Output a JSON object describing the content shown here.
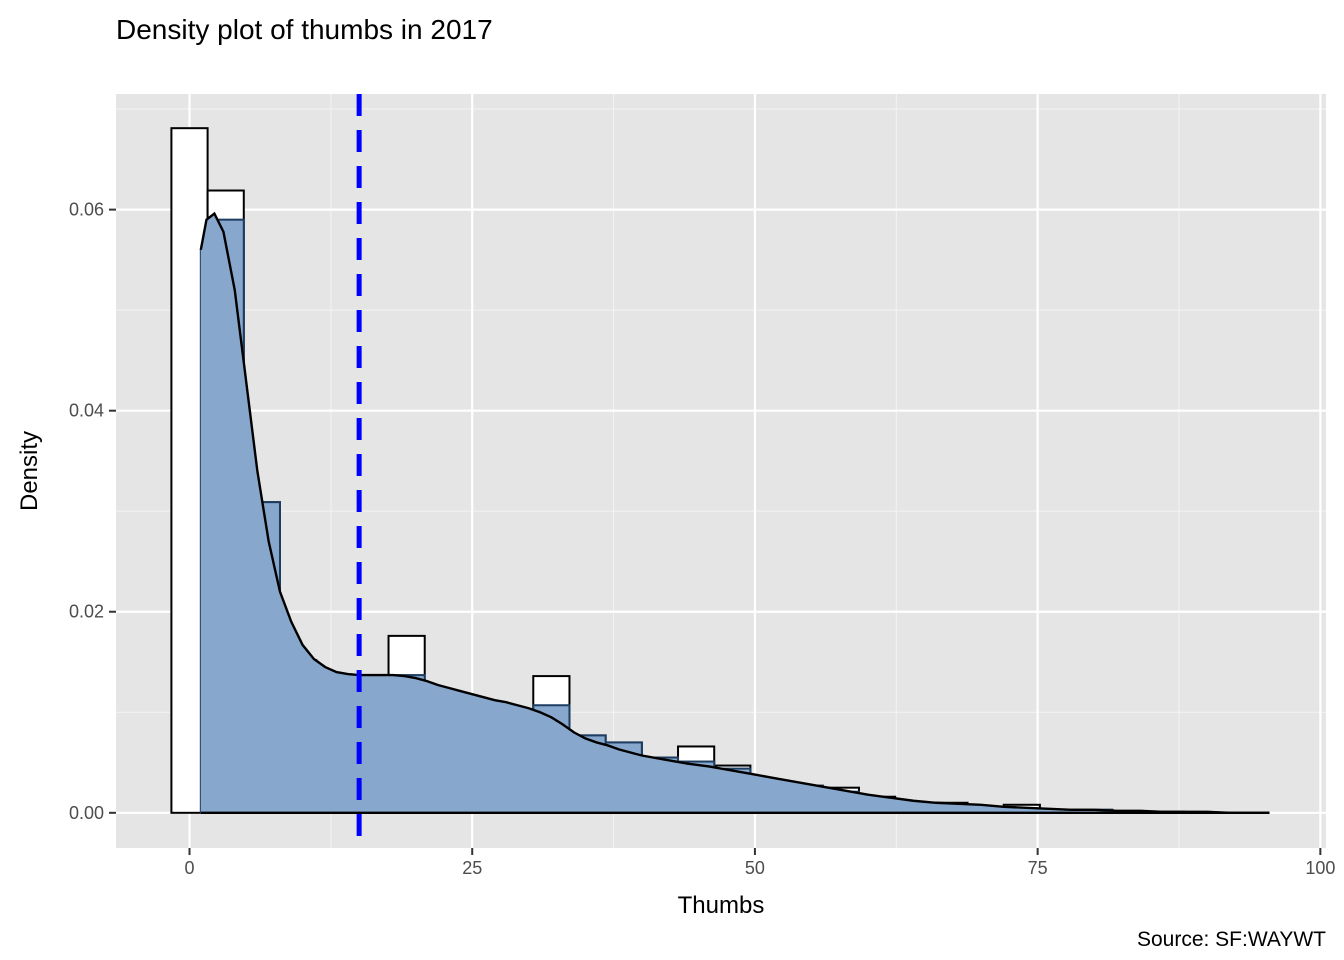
{
  "chart_data": {
    "type": "histogram-density",
    "title": "Density plot of thumbs in 2017",
    "xlabel": "Thumbs",
    "ylabel": "Density",
    "caption": "Source: SF:WAYWT",
    "xlim": [
      -6.5,
      100.5
    ],
    "ylim": [
      -0.0035,
      0.0715
    ],
    "x_ticks": [
      0,
      25,
      50,
      75,
      100
    ],
    "y_ticks": [
      0.0,
      0.02,
      0.04,
      0.06
    ],
    "x_tick_labels": [
      "0",
      "25",
      "50",
      "75",
      "100"
    ],
    "y_tick_labels": [
      "0.00",
      "0.02",
      "0.04",
      "0.06"
    ],
    "grid": true,
    "mean_line": {
      "x": 15.0,
      "color": "#0000ff",
      "style": "dashed"
    },
    "histogram_white": {
      "fill": "#ffffff",
      "stroke": "#000000",
      "bins": [
        {
          "x0": -1.6,
          "x1": 1.6,
          "density": 0.0681
        },
        {
          "x0": 1.6,
          "x1": 4.8,
          "density": 0.0619
        },
        {
          "x0": 4.8,
          "x1": 8.0,
          "density": 0.0309
        },
        {
          "x0": 8.0,
          "x1": 11.2,
          "density": 0.0152
        },
        {
          "x0": 11.2,
          "x1": 14.4,
          "density": 0.0129
        },
        {
          "x0": 14.4,
          "x1": 17.6,
          "density": 0.0122
        },
        {
          "x0": 17.6,
          "x1": 20.8,
          "density": 0.0176
        },
        {
          "x0": 20.8,
          "x1": 24.0,
          "density": 0.0116
        },
        {
          "x0": 24.0,
          "x1": 27.2,
          "density": 0.0111
        },
        {
          "x0": 27.2,
          "x1": 30.4,
          "density": 0.0101
        },
        {
          "x0": 30.4,
          "x1": 33.6,
          "density": 0.0136
        },
        {
          "x0": 33.6,
          "x1": 36.8,
          "density": 0.0077
        },
        {
          "x0": 36.8,
          "x1": 40.0,
          "density": 0.007
        },
        {
          "x0": 40.0,
          "x1": 43.2,
          "density": 0.0055
        },
        {
          "x0": 43.2,
          "x1": 46.4,
          "density": 0.0066
        },
        {
          "x0": 46.4,
          "x1": 49.6,
          "density": 0.0047
        },
        {
          "x0": 49.6,
          "x1": 52.8,
          "density": 0.0029
        },
        {
          "x0": 52.8,
          "x1": 56.0,
          "density": 0.0027
        },
        {
          "x0": 56.0,
          "x1": 59.2,
          "density": 0.0025
        },
        {
          "x0": 59.2,
          "x1": 62.4,
          "density": 0.0016
        },
        {
          "x0": 62.4,
          "x1": 65.6,
          "density": 0.0008
        },
        {
          "x0": 65.6,
          "x1": 68.8,
          "density": 0.001
        },
        {
          "x0": 68.8,
          "x1": 72.0,
          "density": 0.0004
        },
        {
          "x0": 72.0,
          "x1": 75.2,
          "density": 0.0008
        },
        {
          "x0": 75.2,
          "x1": 78.4,
          "density": 0.0003
        },
        {
          "x0": 78.4,
          "x1": 81.6,
          "density": 0.0003
        },
        {
          "x0": 81.6,
          "x1": 84.8,
          "density": 0.0001
        },
        {
          "x0": 84.8,
          "x1": 88.0,
          "density": 0.0001
        },
        {
          "x0": 88.0,
          "x1": 91.2,
          "density": 0.0
        },
        {
          "x0": 91.2,
          "x1": 94.4,
          "density": 0.0
        }
      ]
    },
    "histogram_blue": {
      "fill": "#87a8cc",
      "stroke": "#1e3d62",
      "bins": [
        {
          "x0": 1.0,
          "x1": 2.3,
          "density": 0.056
        },
        {
          "x0": 2.3,
          "x1": 4.8,
          "density": 0.059
        },
        {
          "x0": 4.8,
          "x1": 8.0,
          "density": 0.0309
        },
        {
          "x0": 8.0,
          "x1": 11.2,
          "density": 0.0152
        },
        {
          "x0": 11.2,
          "x1": 14.4,
          "density": 0.0129
        },
        {
          "x0": 14.4,
          "x1": 17.6,
          "density": 0.0122
        },
        {
          "x0": 17.6,
          "x1": 20.8,
          "density": 0.0137
        },
        {
          "x0": 20.8,
          "x1": 24.0,
          "density": 0.0116
        },
        {
          "x0": 24.0,
          "x1": 27.2,
          "density": 0.0111
        },
        {
          "x0": 27.2,
          "x1": 30.4,
          "density": 0.0101
        },
        {
          "x0": 30.4,
          "x1": 33.6,
          "density": 0.0107
        },
        {
          "x0": 33.6,
          "x1": 36.8,
          "density": 0.0077
        },
        {
          "x0": 36.8,
          "x1": 40.0,
          "density": 0.007
        },
        {
          "x0": 40.0,
          "x1": 43.2,
          "density": 0.0055
        },
        {
          "x0": 43.2,
          "x1": 46.4,
          "density": 0.0051
        },
        {
          "x0": 46.4,
          "x1": 49.6,
          "density": 0.0044
        },
        {
          "x0": 49.6,
          "x1": 52.8,
          "density": 0.0029
        },
        {
          "x0": 52.8,
          "x1": 56.0,
          "density": 0.0027
        },
        {
          "x0": 56.0,
          "x1": 59.2,
          "density": 0.0021
        },
        {
          "x0": 59.2,
          "x1": 62.4,
          "density": 0.0013
        },
        {
          "x0": 62.4,
          "x1": 65.6,
          "density": 0.0008
        },
        {
          "x0": 65.6,
          "x1": 68.8,
          "density": 0.0007
        },
        {
          "x0": 68.8,
          "x1": 72.0,
          "density": 0.0004
        },
        {
          "x0": 72.0,
          "x1": 75.2,
          "density": 0.0004
        },
        {
          "x0": 75.2,
          "x1": 78.4,
          "density": 0.0003
        },
        {
          "x0": 78.4,
          "x1": 81.6,
          "density": 0.0003
        },
        {
          "x0": 81.6,
          "x1": 84.8,
          "density": 0.0001
        },
        {
          "x0": 84.8,
          "x1": 88.0,
          "density": 0.0001
        },
        {
          "x0": 88.0,
          "x1": 91.2,
          "density": 0.0
        },
        {
          "x0": 91.2,
          "x1": 95.5,
          "density": 0.0
        }
      ]
    },
    "density_curve": {
      "stroke": "#000000",
      "fill": "#87a8cc",
      "points": [
        [
          1.0,
          0.056
        ],
        [
          1.5,
          0.059
        ],
        [
          2.2,
          0.0596
        ],
        [
          3.0,
          0.0578
        ],
        [
          4.0,
          0.052
        ],
        [
          5.0,
          0.043
        ],
        [
          6.0,
          0.034
        ],
        [
          7.0,
          0.027
        ],
        [
          8.0,
          0.022
        ],
        [
          9.0,
          0.019
        ],
        [
          10.0,
          0.0167
        ],
        [
          11.0,
          0.0153
        ],
        [
          12.0,
          0.0145
        ],
        [
          13.0,
          0.014
        ],
        [
          14.0,
          0.0138
        ],
        [
          15.0,
          0.0137
        ],
        [
          16.0,
          0.0137
        ],
        [
          17.0,
          0.0137
        ],
        [
          18.0,
          0.0137
        ],
        [
          19.0,
          0.0136
        ],
        [
          20.0,
          0.0134
        ],
        [
          21.0,
          0.0131
        ],
        [
          22.0,
          0.0127
        ],
        [
          23.0,
          0.0124
        ],
        [
          24.0,
          0.0121
        ],
        [
          25.0,
          0.0118
        ],
        [
          26.0,
          0.0115
        ],
        [
          27.0,
          0.0112
        ],
        [
          28.0,
          0.011
        ],
        [
          29.0,
          0.0107
        ],
        [
          30.0,
          0.0104
        ],
        [
          31.0,
          0.01
        ],
        [
          32.0,
          0.0095
        ],
        [
          33.0,
          0.0088
        ],
        [
          34.0,
          0.008
        ],
        [
          35.0,
          0.0074
        ],
        [
          36.0,
          0.007
        ],
        [
          37.0,
          0.0067
        ],
        [
          38.0,
          0.0063
        ],
        [
          39.0,
          0.006
        ],
        [
          40.0,
          0.0057
        ],
        [
          42.0,
          0.0053
        ],
        [
          44.0,
          0.0049
        ],
        [
          46.0,
          0.0046
        ],
        [
          48.0,
          0.0042
        ],
        [
          50.0,
          0.0038
        ],
        [
          52.0,
          0.0034
        ],
        [
          54.0,
          0.003
        ],
        [
          56.0,
          0.0026
        ],
        [
          58.0,
          0.0022
        ],
        [
          60.0,
          0.0018
        ],
        [
          62.0,
          0.0015
        ],
        [
          64.0,
          0.0012
        ],
        [
          66.0,
          0.001
        ],
        [
          68.0,
          0.0009
        ],
        [
          70.0,
          0.0008
        ],
        [
          72.0,
          0.0006
        ],
        [
          74.0,
          0.0005
        ],
        [
          76.0,
          0.0004
        ],
        [
          78.0,
          0.0003
        ],
        [
          80.0,
          0.0003
        ],
        [
          82.0,
          0.0002
        ],
        [
          84.0,
          0.0002
        ],
        [
          86.0,
          0.0001
        ],
        [
          88.0,
          0.0001
        ],
        [
          90.0,
          0.0001
        ],
        [
          92.0,
          0.0
        ],
        [
          95.5,
          0.0
        ]
      ]
    }
  }
}
